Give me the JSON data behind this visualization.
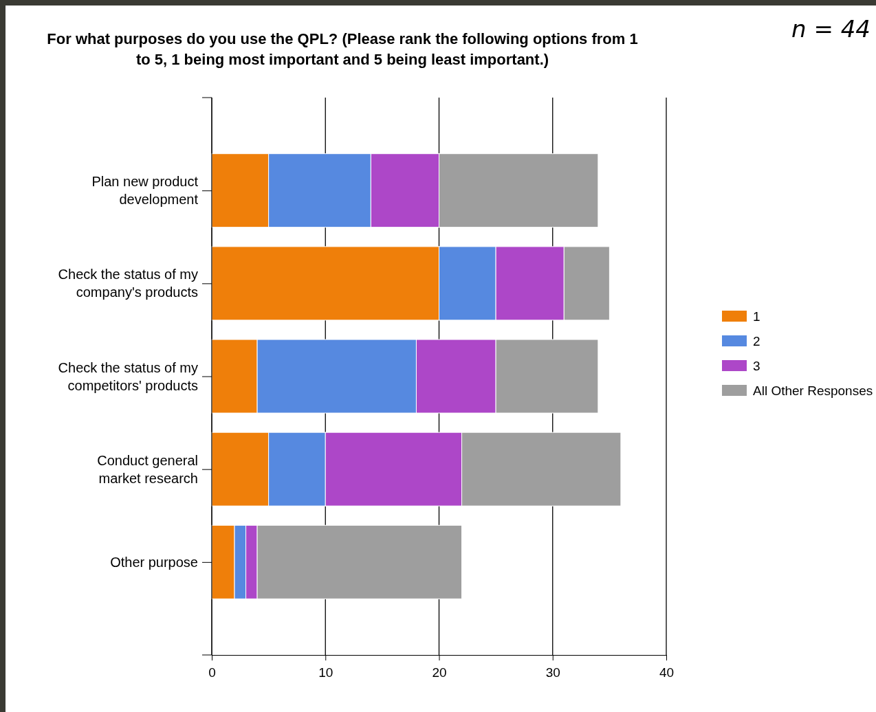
{
  "chart_data": {
    "type": "bar",
    "orientation": "horizontal",
    "stacked": true,
    "title": "For what purposes do you use the QPL? (Please rank the following options from 1 to 5, 1 being most important and 5 being least important.)",
    "annotations": [
      "n = 44"
    ],
    "categories": [
      "Plan new product development",
      "Check the status of my company's products",
      "Check the status of my competitors' products",
      "Conduct general market research",
      "Other purpose"
    ],
    "series": [
      {
        "name": "1",
        "color": "#ef7f0a",
        "values": [
          5,
          20,
          4,
          5,
          2
        ]
      },
      {
        "name": "2",
        "color": "#5689e0",
        "values": [
          9,
          5,
          14,
          5,
          1
        ]
      },
      {
        "name": "3",
        "color": "#ad47c8",
        "values": [
          6,
          6,
          7,
          12,
          1
        ]
      },
      {
        "name": "All Other Responses",
        "color": "#9e9e9e",
        "values": [
          14,
          4,
          9,
          14,
          18
        ]
      }
    ],
    "xlim": [
      0,
      40
    ],
    "xticks": [
      0,
      10,
      20,
      30,
      40
    ],
    "grid": "x",
    "legend": "right"
  }
}
